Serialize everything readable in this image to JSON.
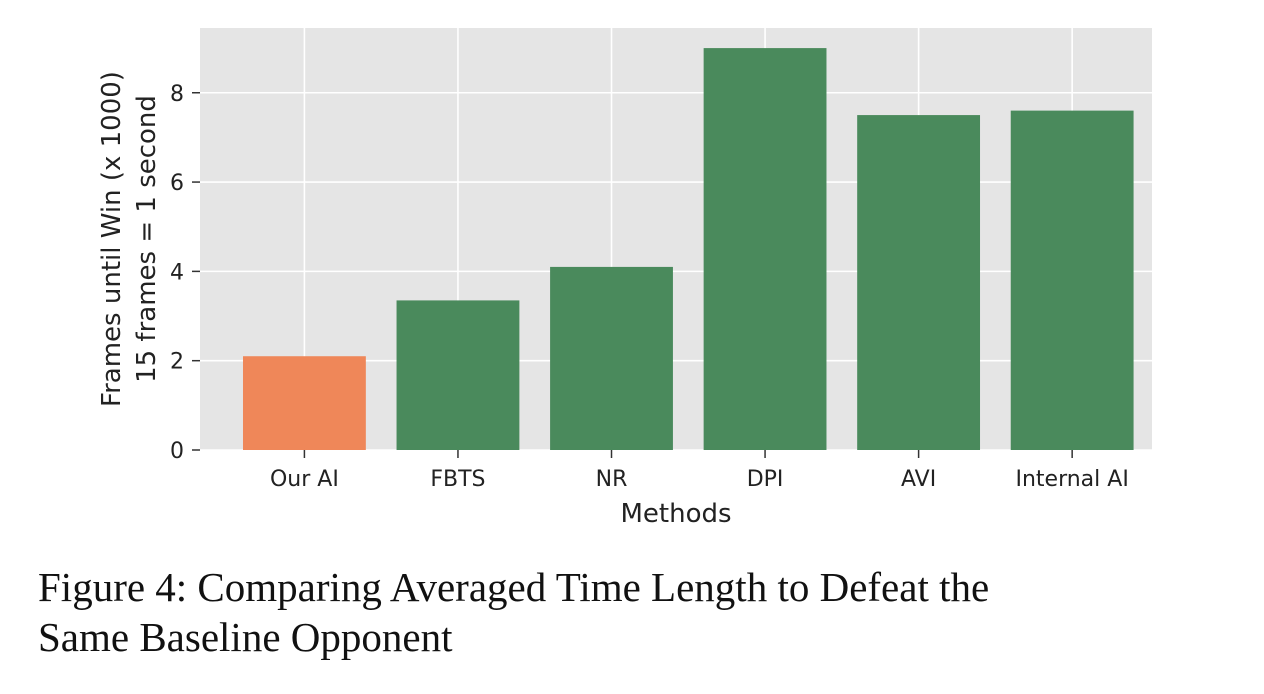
{
  "chart_data": {
    "type": "bar",
    "categories": [
      "Our AI",
      "FBTS",
      "NR",
      "DPI",
      "AVI",
      "Internal AI"
    ],
    "values": [
      2.1,
      3.35,
      4.1,
      9.0,
      7.5,
      7.6
    ],
    "bar_colors": [
      "#ef8759",
      "#4a8a5c",
      "#4a8a5c",
      "#4a8a5c",
      "#4a8a5c",
      "#4a8a5c"
    ],
    "xlabel": "Methods",
    "ylabel": [
      "Frames until Win (x 1000)",
      "15 frames = 1 second"
    ],
    "yticks": [
      "0",
      "2",
      "4",
      "6",
      "8"
    ],
    "ylim": [
      0,
      9.45
    ],
    "grid": true,
    "plot_background": "#e5e5e5",
    "grid_color": "#ffffff"
  },
  "caption": {
    "line1": "Figure 4: Comparing Averaged Time Length to Defeat the",
    "line2": "Same Baseline Opponent"
  }
}
